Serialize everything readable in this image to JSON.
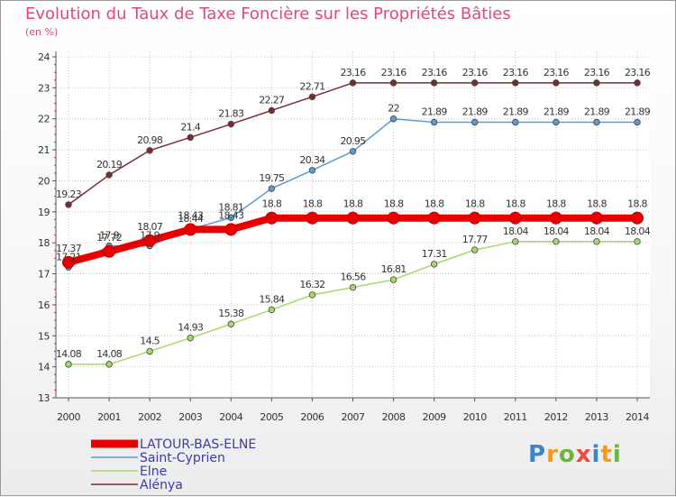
{
  "chart_data": {
    "type": "line",
    "title": "Evolution du Taux de Taxe Foncière sur les Propriétés Bâties",
    "subtitle": "(en %)",
    "xlabel": "",
    "ylabel": "",
    "ylim": [
      13,
      24
    ],
    "yticks": [
      "13",
      "14",
      "15",
      "16",
      "17",
      "18",
      "19",
      "20",
      "21",
      "22",
      "23",
      "24"
    ],
    "categories": [
      "2000",
      "2001",
      "2002",
      "2003",
      "2004",
      "2005",
      "2006",
      "2007",
      "2008",
      "2009",
      "2010",
      "2011",
      "2012",
      "2013",
      "2014"
    ],
    "series": [
      {
        "name": "Alénya",
        "color": "#7a2a32",
        "values": [
          19.23,
          20.19,
          20.98,
          21.4,
          21.83,
          22.27,
          22.71,
          23.16,
          23.16,
          23.16,
          23.16,
          23.16,
          23.16,
          23.16,
          23.16
        ],
        "labels": [
          "19.23",
          "20.19",
          "20.98",
          "21.4",
          "21.83",
          "22.27",
          "22.71",
          "23.16",
          "23.16",
          "23.16",
          "23.16",
          "23.16",
          "23.16",
          "23.16",
          "23.16"
        ]
      },
      {
        "name": "Saint-Cyprien",
        "color": "#5e9bd0",
        "values": [
          17.21,
          17.9,
          17.9,
          18.44,
          18.81,
          19.75,
          20.34,
          20.95,
          22,
          21.89,
          21.89,
          21.89,
          21.89,
          21.89,
          21.89
        ],
        "labels": [
          "17.21",
          "17.9",
          "17.9",
          "18.44",
          "18.81",
          "19.75",
          "20.34",
          "20.95",
          "22",
          "21.89",
          "21.89",
          "21.89",
          "21.89",
          "21.89",
          "21.89"
        ]
      },
      {
        "name": "Elne",
        "color": "#a6d86a",
        "values": [
          14.08,
          14.08,
          14.5,
          14.93,
          15.38,
          15.84,
          16.32,
          16.56,
          16.81,
          17.31,
          17.77,
          18.04,
          18.04,
          18.04,
          18.04
        ],
        "labels": [
          "14.08",
          "14.08",
          "14.5",
          "14.93",
          "15.38",
          "15.84",
          "16.32",
          "16.56",
          "16.81",
          "17.31",
          "17.77",
          "18.04",
          "18.04",
          "18.04",
          "18.04"
        ]
      },
      {
        "name": "LATOUR-BAS-ELNE",
        "color": "#e80000",
        "values": [
          17.37,
          17.72,
          18.07,
          18.43,
          18.43,
          18.8,
          18.8,
          18.8,
          18.8,
          18.8,
          18.8,
          18.8,
          18.8,
          18.8,
          18.8
        ],
        "labels": [
          "17.37",
          "17.72",
          "18.07",
          "18.43",
          "18.43",
          "18.8",
          "18.8",
          "18.8",
          "18.8",
          "18.8",
          "18.8",
          "18.8",
          "18.8",
          "18.8",
          "18.8"
        ]
      }
    ],
    "legend": [
      "LATOUR-BAS-ELNE",
      "Saint-Cyprien",
      "Elne",
      "Alénya"
    ],
    "legend_position": "bottom-left"
  },
  "brand": {
    "letters": [
      "P",
      "r",
      "o",
      "x",
      "i",
      "t",
      "i"
    ],
    "colors": [
      "#3d86c6",
      "#f29a1d",
      "#6db33f",
      "#e94e3c",
      "#3d86c6",
      "#f29a1d",
      "#6db33f"
    ]
  }
}
